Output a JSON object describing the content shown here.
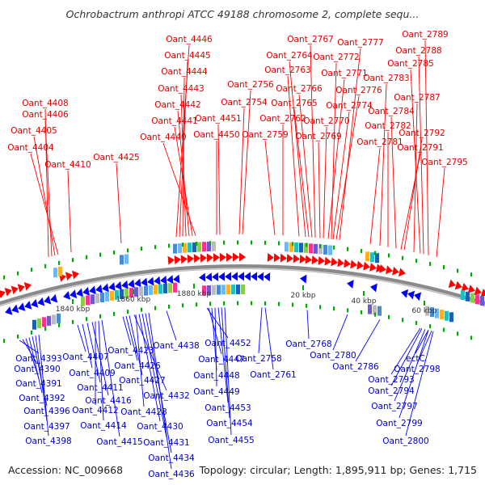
{
  "title": "Ochrobactrum anthropi ATCC 49188 chromosome 2, complete sequ...",
  "footer": {
    "accession": "Accession: NC_009668",
    "topology": "Topology: circular; Length: 1,895,911 bp; Genes: 1,715"
  },
  "colors": {
    "forward": "#ff0000",
    "reverse": "#0000ff",
    "backbone": "#8a8a8a",
    "tick": "#00aa00"
  },
  "scale_ticks": [
    "1840 kbp",
    "1860 kbp",
    "1880 kbp",
    "20 kbp",
    "40 kbp",
    "60 kbp"
  ],
  "labels_top": [
    "Oant_4446",
    "Oant_4445",
    "Oant_4444",
    "Oant_4443",
    "Oant_4442",
    "Oant_4441",
    "Oant_4440",
    "Oant_4451",
    "Oant_4450",
    "Oant_4408",
    "Oant_4406",
    "Oant_4405",
    "Oant_4404",
    "Oant_4410",
    "Oant_4425",
    "Oant_2767",
    "Oant_2764",
    "Oant_2763",
    "Oant_2756",
    "Oant_2754",
    "Oant_2766",
    "Oant_2765",
    "Oant_2762",
    "Oant_2759",
    "Oant_2777",
    "Oant_2772",
    "Oant_2771",
    "Oant_2776",
    "Oant_2774",
    "Oant_2770",
    "Oant_2769",
    "Oant_2789",
    "Oant_2788",
    "Oant_2785",
    "Oant_2783",
    "Oant_2787",
    "Oant_2784",
    "Oant_2782",
    "Oant_2781",
    "Oant_2792",
    "Oant_2791",
    "Oant_2795"
  ],
  "labels_bottom": [
    "Oant_4393",
    "Oant_4390",
    "Oant_4391",
    "Oant_4392",
    "Oant_4396",
    "Oant_4397",
    "Oant_4398",
    "Oant_4407",
    "Oant_4409",
    "Oant_4411",
    "Oant_4416",
    "Oant_4412",
    "Oant_4414",
    "Oant_4415",
    "Oant_4423",
    "Oant_4426",
    "Oant_4427",
    "Oant_4432",
    "Oant_4428",
    "Oant_4430",
    "Oant_4431",
    "Oant_4434",
    "Oant_4436",
    "Oant_4438",
    "Oant_4452",
    "Oant_4447",
    "Oant_4448",
    "Oant_4449",
    "Oant_4453",
    "Oant_4454",
    "Oant_4455",
    "Oant_2758",
    "Oant_2761",
    "Oant_2768",
    "Oant_2780",
    "Oant_2786",
    "ectC",
    "Oant_2798",
    "Oant_2793",
    "Oant_2794",
    "Oant_2797",
    "Oant_2799",
    "Oant_2800"
  ]
}
